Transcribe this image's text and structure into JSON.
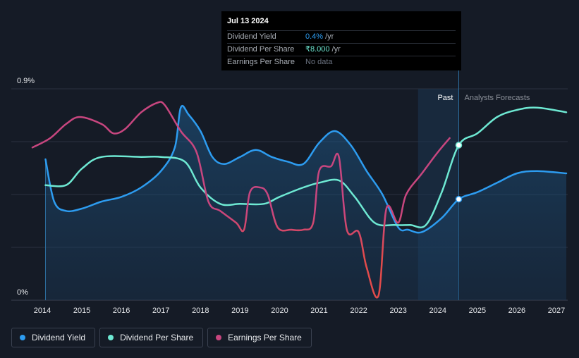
{
  "tooltip": {
    "date": "Jul 13 2024",
    "rows": [
      {
        "label": "Dividend Yield",
        "value": "0.4%",
        "unit": "/yr"
      },
      {
        "label": "Dividend Per Share",
        "value": "₹8.000",
        "unit": "/yr"
      },
      {
        "label": "Earnings Per Share",
        "value": "No data",
        "unit": ""
      }
    ]
  },
  "legend": {
    "items": [
      {
        "label": "Dividend Yield",
        "color": "#2d9cf0"
      },
      {
        "label": "Dividend Per Share",
        "color": "#6ee9d3"
      },
      {
        "label": "Earnings Per Share",
        "color": "#c8467f"
      }
    ]
  },
  "chart_data": {
    "type": "line",
    "title": "",
    "xlabel": "",
    "ylabel": "",
    "y_tick_labels": [
      "0.9%",
      "0%"
    ],
    "x_tick_labels": [
      "2014",
      "2015",
      "2016",
      "2017",
      "2018",
      "2019",
      "2020",
      "2021",
      "2022",
      "2023",
      "2024",
      "2025",
      "2026",
      "2027"
    ],
    "xlim": [
      2013.7,
      2027.25
    ],
    "ylim": [
      0,
      0.9
    ],
    "past_label": "Past",
    "forecast_label": "Analysts Forecasts",
    "forecast_start": 2024.53,
    "past_shade_start": 2023.5,
    "series": [
      {
        "name": "Dividend Yield",
        "color": "#2d9cf0",
        "area": true,
        "points": [
          [
            2014.08,
            0.6
          ],
          [
            2014.3,
            0.42
          ],
          [
            2014.6,
            0.38
          ],
          [
            2015.0,
            0.39
          ],
          [
            2015.5,
            0.42
          ],
          [
            2016.0,
            0.44
          ],
          [
            2016.5,
            0.48
          ],
          [
            2017.0,
            0.55
          ],
          [
            2017.35,
            0.65
          ],
          [
            2017.5,
            0.82
          ],
          [
            2017.7,
            0.79
          ],
          [
            2018.0,
            0.72
          ],
          [
            2018.3,
            0.61
          ],
          [
            2018.6,
            0.58
          ],
          [
            2019.0,
            0.61
          ],
          [
            2019.4,
            0.64
          ],
          [
            2019.8,
            0.61
          ],
          [
            2020.2,
            0.59
          ],
          [
            2020.6,
            0.58
          ],
          [
            2021.0,
            0.67
          ],
          [
            2021.4,
            0.72
          ],
          [
            2021.8,
            0.66
          ],
          [
            2022.2,
            0.55
          ],
          [
            2022.6,
            0.45
          ],
          [
            2023.0,
            0.31
          ],
          [
            2023.25,
            0.3
          ],
          [
            2023.6,
            0.29
          ],
          [
            2024.1,
            0.35
          ],
          [
            2024.53,
            0.43
          ],
          [
            2025.0,
            0.46
          ],
          [
            2025.5,
            0.5
          ],
          [
            2026.0,
            0.54
          ],
          [
            2026.5,
            0.55
          ],
          [
            2027.25,
            0.54
          ]
        ]
      },
      {
        "name": "Dividend Per Share",
        "color": "#6ee9d3",
        "points": [
          [
            2014.08,
            0.49
          ],
          [
            2014.6,
            0.49
          ],
          [
            2015.0,
            0.56
          ],
          [
            2015.5,
            0.61
          ],
          [
            2016.5,
            0.61
          ],
          [
            2017.0,
            0.61
          ],
          [
            2017.6,
            0.59
          ],
          [
            2018.0,
            0.48
          ],
          [
            2018.5,
            0.41
          ],
          [
            2019.0,
            0.41
          ],
          [
            2019.6,
            0.41
          ],
          [
            2020.0,
            0.44
          ],
          [
            2020.6,
            0.48
          ],
          [
            2021.0,
            0.5
          ],
          [
            2021.5,
            0.51
          ],
          [
            2021.9,
            0.44
          ],
          [
            2022.4,
            0.33
          ],
          [
            2022.9,
            0.32
          ],
          [
            2023.3,
            0.32
          ],
          [
            2023.7,
            0.32
          ],
          [
            2024.1,
            0.46
          ],
          [
            2024.53,
            0.66
          ],
          [
            2025.0,
            0.71
          ],
          [
            2025.5,
            0.78
          ],
          [
            2026.0,
            0.81
          ],
          [
            2026.5,
            0.82
          ],
          [
            2027.25,
            0.8
          ]
        ]
      },
      {
        "name": "Earnings Per Share",
        "color": "#c8467f",
        "color_low": "#e24b4b",
        "points": [
          [
            2013.75,
            0.65
          ],
          [
            2014.2,
            0.69
          ],
          [
            2014.6,
            0.75
          ],
          [
            2014.95,
            0.78
          ],
          [
            2015.5,
            0.75
          ],
          [
            2015.8,
            0.71
          ],
          [
            2016.1,
            0.73
          ],
          [
            2016.5,
            0.8
          ],
          [
            2016.9,
            0.84
          ],
          [
            2017.1,
            0.83
          ],
          [
            2017.5,
            0.72
          ],
          [
            2017.9,
            0.63
          ],
          [
            2018.2,
            0.42
          ],
          [
            2018.5,
            0.38
          ],
          [
            2018.9,
            0.33
          ],
          [
            2019.1,
            0.3
          ],
          [
            2019.25,
            0.46
          ],
          [
            2019.5,
            0.48
          ],
          [
            2019.7,
            0.45
          ],
          [
            2019.95,
            0.31
          ],
          [
            2020.3,
            0.3
          ],
          [
            2020.6,
            0.3
          ],
          [
            2020.85,
            0.33
          ],
          [
            2021.0,
            0.55
          ],
          [
            2021.3,
            0.57
          ],
          [
            2021.5,
            0.61
          ],
          [
            2021.7,
            0.3
          ],
          [
            2022.0,
            0.29
          ],
          [
            2022.2,
            0.14
          ],
          [
            2022.5,
            0.02
          ],
          [
            2022.7,
            0.39
          ],
          [
            2023.0,
            0.33
          ],
          [
            2023.2,
            0.45
          ],
          [
            2023.6,
            0.54
          ],
          [
            2024.0,
            0.63
          ],
          [
            2024.3,
            0.69
          ]
        ]
      }
    ],
    "markers": [
      {
        "series": "Dividend Yield",
        "x": 2024.53,
        "y": 0.43
      },
      {
        "series": "Dividend Per Share",
        "x": 2024.53,
        "y": 0.66
      }
    ]
  }
}
